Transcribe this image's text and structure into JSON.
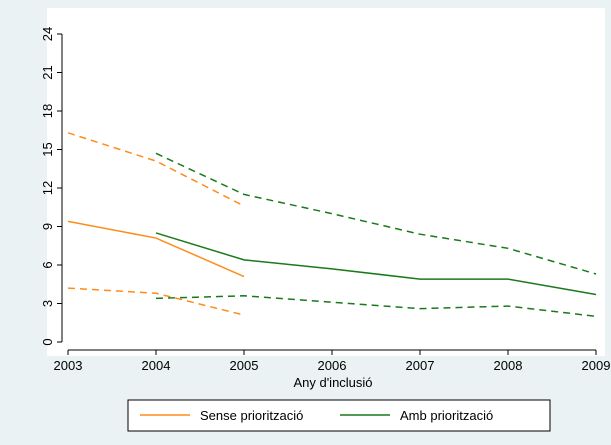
{
  "chart_data": {
    "type": "line",
    "x_label": "Any d'inclusió",
    "x": [
      2003,
      2004,
      2005,
      2006,
      2007,
      2008,
      2009
    ],
    "xlim": [
      2003,
      2009
    ],
    "xticks": [
      2003,
      2004,
      2005,
      2006,
      2007,
      2008,
      2009
    ],
    "ylim": [
      0,
      24
    ],
    "yticks": [
      0,
      3,
      6,
      9,
      12,
      15,
      18,
      21,
      24
    ],
    "legend": "bottom",
    "series": [
      {
        "name": "Sense priorització",
        "color": "#ff8c1a",
        "values": [
          9.4,
          8.1,
          5.1,
          null,
          null,
          null,
          null
        ],
        "upper": [
          16.3,
          14.1,
          10.6,
          null,
          null,
          null,
          null
        ],
        "lower": [
          4.2,
          3.8,
          2.1,
          null,
          null,
          null,
          null
        ]
      },
      {
        "name": "Amb priorització",
        "color": "#1a7a1a",
        "values": [
          null,
          8.5,
          6.4,
          5.7,
          4.9,
          4.9,
          3.7
        ],
        "upper": [
          null,
          14.7,
          11.5,
          10.0,
          8.4,
          7.3,
          5.3
        ],
        "lower": [
          null,
          3.4,
          3.6,
          3.1,
          2.6,
          2.8,
          2.0
        ]
      }
    ]
  }
}
